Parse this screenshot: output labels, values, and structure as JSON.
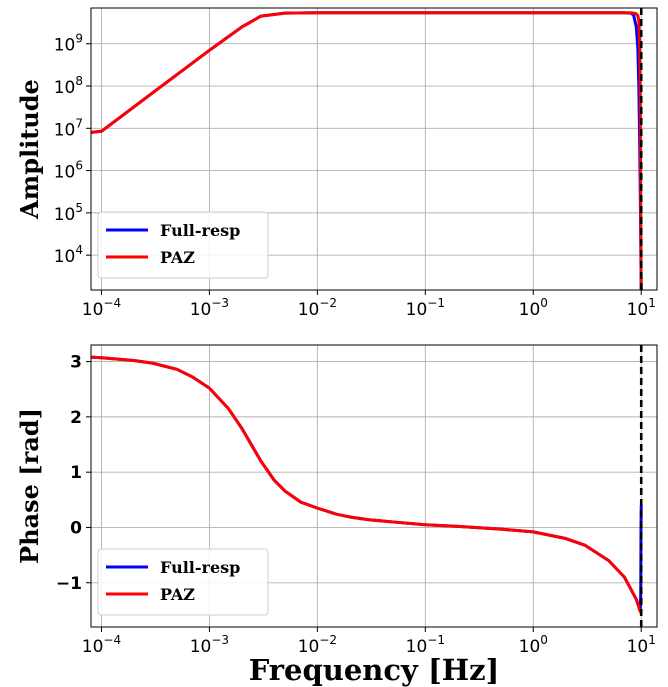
{
  "chart_data": [
    {
      "type": "line",
      "ylabel": "Amplitude",
      "xscale": "log",
      "yscale": "log",
      "xlim": [
        8e-05,
        14
      ],
      "ylim": [
        1500,
        7000000000
      ],
      "xticks": [
        0.0001,
        0.001,
        0.01,
        0.1,
        1,
        10
      ],
      "xtick_labels": [
        {
          "base": "10",
          "exp": "−4"
        },
        {
          "base": "10",
          "exp": "−3"
        },
        {
          "base": "10",
          "exp": "−2"
        },
        {
          "base": "10",
          "exp": "−1"
        },
        {
          "base": "10",
          "exp": "0"
        },
        {
          "base": "10",
          "exp": "1"
        }
      ],
      "yticks": [
        10000,
        100000,
        1000000,
        10000000,
        100000000,
        1000000000
      ],
      "ytick_labels": [
        {
          "base": "10",
          "exp": "4"
        },
        {
          "base": "10",
          "exp": "5"
        },
        {
          "base": "10",
          "exp": "6"
        },
        {
          "base": "10",
          "exp": "7"
        },
        {
          "base": "10",
          "exp": "8"
        },
        {
          "base": "10",
          "exp": "9"
        }
      ],
      "grid": true,
      "legend_position": "lower-left",
      "vline": {
        "x": 10,
        "color": "#000000",
        "style": "dashed"
      },
      "series": [
        {
          "name": "Full-resp",
          "color": "#0000ff",
          "x": [
            8e-05,
            0.0001,
            0.0003,
            0.001,
            0.002,
            0.003,
            0.005,
            0.01,
            0.1,
            1,
            5,
            7,
            8,
            8.5,
            9,
            9.3,
            9.5,
            9.7,
            9.85,
            9.95,
            10
          ],
          "y": [
            8000000,
            8500000,
            70000000,
            700000000,
            2500000000,
            4500000000,
            5300000000,
            5400000000,
            5400000000,
            5400000000,
            5400000000,
            5400000000,
            5300000000,
            4800000000,
            2500000000,
            800000000,
            100000000,
            3000000,
            80000,
            5000,
            1500
          ]
        },
        {
          "name": "PAZ",
          "color": "#ff0000",
          "x": [
            8e-05,
            0.0001,
            0.0003,
            0.001,
            0.002,
            0.003,
            0.005,
            0.01,
            0.1,
            1,
            5,
            7,
            8,
            8.5,
            9,
            9.3,
            9.5,
            9.7,
            9.8,
            9.9,
            9.96,
            10
          ],
          "y": [
            8000000,
            8500000,
            70000000,
            700000000,
            2500000000,
            4500000000,
            5300000000,
            5400000000,
            5400000000,
            5400000000,
            5400000000,
            5400000000,
            5400000000,
            5300000000,
            5100000000,
            4600000000,
            3500000000,
            800000000,
            50000000,
            100000,
            3000,
            1500
          ]
        }
      ]
    },
    {
      "type": "line",
      "xlabel": "Frequency [Hz]",
      "ylabel": "Phase [rad]",
      "xscale": "log",
      "yscale": "linear",
      "xlim": [
        8e-05,
        14
      ],
      "ylim": [
        -1.8,
        3.3
      ],
      "xticks": [
        0.0001,
        0.001,
        0.01,
        0.1,
        1,
        10
      ],
      "xtick_labels": [
        {
          "base": "10",
          "exp": "−4"
        },
        {
          "base": "10",
          "exp": "−3"
        },
        {
          "base": "10",
          "exp": "−2"
        },
        {
          "base": "10",
          "exp": "−1"
        },
        {
          "base": "10",
          "exp": "0"
        },
        {
          "base": "10",
          "exp": "1"
        }
      ],
      "yticks": [
        -1,
        0,
        1,
        2,
        3
      ],
      "ytick_labels": [
        "−1",
        "0",
        "1",
        "2",
        "3"
      ],
      "grid": true,
      "legend_position": "lower-left",
      "vline": {
        "x": 10,
        "color": "#000000",
        "style": "dashed"
      },
      "series": [
        {
          "name": "Full-resp",
          "color": "#0000ff",
          "x": [
            8e-05,
            0.0001,
            0.0002,
            0.0003,
            0.0005,
            0.0007,
            0.001,
            0.0015,
            0.002,
            0.003,
            0.004,
            0.005,
            0.007,
            0.01,
            0.015,
            0.02,
            0.03,
            0.05,
            0.1,
            0.2,
            0.5,
            1,
            2,
            3,
            5,
            7,
            9,
            9.8,
            9.9,
            9.95,
            10
          ],
          "y": [
            3.08,
            3.07,
            3.02,
            2.97,
            2.86,
            2.72,
            2.52,
            2.15,
            1.79,
            1.2,
            0.85,
            0.66,
            0.46,
            0.35,
            0.24,
            0.19,
            0.14,
            0.1,
            0.05,
            0.02,
            -0.03,
            -0.08,
            -0.2,
            -0.32,
            -0.6,
            -0.9,
            -1.3,
            -1.5,
            -1.2,
            0.0,
            0.4
          ]
        },
        {
          "name": "PAZ",
          "color": "#ff0000",
          "x": [
            8e-05,
            0.0001,
            0.0002,
            0.0003,
            0.0005,
            0.0007,
            0.001,
            0.0015,
            0.002,
            0.003,
            0.004,
            0.005,
            0.007,
            0.01,
            0.015,
            0.02,
            0.03,
            0.05,
            0.1,
            0.2,
            0.5,
            1,
            2,
            3,
            5,
            7,
            9,
            9.7,
            10
          ],
          "y": [
            3.08,
            3.07,
            3.02,
            2.97,
            2.86,
            2.72,
            2.52,
            2.15,
            1.79,
            1.2,
            0.85,
            0.66,
            0.46,
            0.35,
            0.24,
            0.19,
            0.14,
            0.1,
            0.05,
            0.02,
            -0.03,
            -0.08,
            -0.2,
            -0.32,
            -0.6,
            -0.9,
            -1.3,
            -1.5,
            -1.55
          ]
        }
      ]
    }
  ]
}
